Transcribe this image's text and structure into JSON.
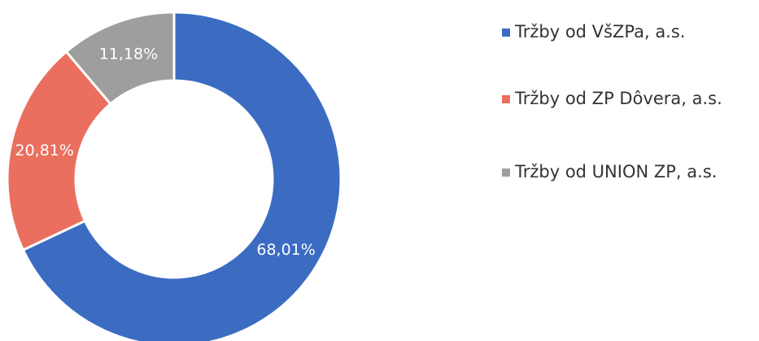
{
  "chart_data": {
    "type": "donut",
    "categories": [
      "Tržby od VšZPa, a.s.",
      "Tržby od ZP Dôvera, a.s.",
      "Tržby od UNION ZP, a.s."
    ],
    "values": [
      68.01,
      20.81,
      11.18
    ],
    "value_labels": [
      "68,01%",
      "20,81%",
      "11,18%"
    ],
    "colors": [
      "#3b6cc2",
      "#ea6f5f",
      "#9e9e9e"
    ],
    "legend": "right"
  }
}
